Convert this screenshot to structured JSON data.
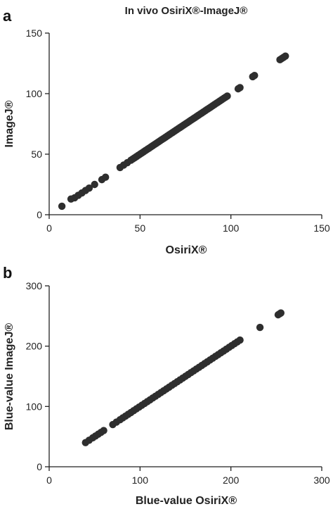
{
  "chart_data": [
    {
      "panel": "a",
      "type": "scatter",
      "title": "In vivo OsiriX®-ImageJ®",
      "xlabel": "OsiriX®",
      "ylabel": "ImageJ®",
      "xlim": [
        0,
        150
      ],
      "ylim": [
        0,
        150
      ],
      "xticks": [
        0,
        50,
        100,
        150
      ],
      "yticks": [
        0,
        50,
        100,
        150
      ],
      "grid": false,
      "color": "#2e2e2e",
      "points": [
        [
          7,
          7
        ],
        [
          12,
          13
        ],
        [
          14,
          14
        ],
        [
          16,
          16
        ],
        [
          18,
          18
        ],
        [
          20,
          20
        ],
        [
          22,
          22
        ],
        [
          25,
          25
        ],
        [
          29,
          29
        ],
        [
          31,
          31
        ],
        [
          39,
          39
        ],
        [
          41,
          41
        ],
        [
          43,
          43
        ],
        [
          45,
          45
        ],
        [
          46,
          46
        ],
        [
          47,
          47
        ],
        [
          48,
          48
        ],
        [
          49,
          49
        ],
        [
          50,
          50
        ],
        [
          51,
          51
        ],
        [
          52,
          52
        ],
        [
          53,
          53
        ],
        [
          54,
          54
        ],
        [
          55,
          55
        ],
        [
          56,
          56
        ],
        [
          57,
          57
        ],
        [
          58,
          58
        ],
        [
          59,
          59
        ],
        [
          60,
          60
        ],
        [
          61,
          61
        ],
        [
          62,
          62
        ],
        [
          63,
          63
        ],
        [
          64,
          64
        ],
        [
          65,
          65
        ],
        [
          66,
          66
        ],
        [
          67,
          67
        ],
        [
          68,
          68
        ],
        [
          69,
          69
        ],
        [
          70,
          70
        ],
        [
          71,
          71
        ],
        [
          72,
          72
        ],
        [
          73,
          73
        ],
        [
          74,
          74
        ],
        [
          75,
          75
        ],
        [
          76,
          76
        ],
        [
          77,
          77
        ],
        [
          78,
          78
        ],
        [
          79,
          79
        ],
        [
          80,
          80
        ],
        [
          81,
          81
        ],
        [
          82,
          82
        ],
        [
          83,
          83
        ],
        [
          84,
          84
        ],
        [
          85,
          85
        ],
        [
          86,
          86
        ],
        [
          87,
          87
        ],
        [
          88,
          88
        ],
        [
          89,
          89
        ],
        [
          90,
          90
        ],
        [
          91,
          91
        ],
        [
          92,
          92
        ],
        [
          93,
          93
        ],
        [
          94,
          94
        ],
        [
          95,
          95
        ],
        [
          96,
          96
        ],
        [
          97,
          97
        ],
        [
          98,
          98
        ],
        [
          104,
          104
        ],
        [
          105,
          105
        ],
        [
          112,
          114
        ],
        [
          113,
          115
        ],
        [
          127,
          128
        ],
        [
          128,
          129
        ],
        [
          129,
          130
        ],
        [
          130,
          131
        ]
      ]
    },
    {
      "panel": "b",
      "type": "scatter",
      "title": "",
      "xlabel": "Blue-value  OsiriX®",
      "ylabel": "Blue-value ImageJ®",
      "xlim": [
        0,
        300
      ],
      "ylim": [
        0,
        300
      ],
      "xticks": [
        0,
        100,
        200,
        300
      ],
      "yticks": [
        0,
        100,
        200,
        300
      ],
      "grid": false,
      "color": "#2e2e2e",
      "points": [
        [
          40,
          40
        ],
        [
          44,
          44
        ],
        [
          48,
          48
        ],
        [
          51,
          51
        ],
        [
          54,
          54
        ],
        [
          57,
          57
        ],
        [
          60,
          60
        ],
        [
          70,
          70
        ],
        [
          74,
          74
        ],
        [
          78,
          78
        ],
        [
          81,
          81
        ],
        [
          84,
          84
        ],
        [
          87,
          87
        ],
        [
          90,
          90
        ],
        [
          93,
          93
        ],
        [
          96,
          96
        ],
        [
          99,
          99
        ],
        [
          102,
          102
        ],
        [
          105,
          105
        ],
        [
          108,
          108
        ],
        [
          111,
          111
        ],
        [
          114,
          114
        ],
        [
          117,
          117
        ],
        [
          120,
          120
        ],
        [
          123,
          123
        ],
        [
          126,
          126
        ],
        [
          129,
          129
        ],
        [
          132,
          132
        ],
        [
          135,
          135
        ],
        [
          138,
          138
        ],
        [
          141,
          141
        ],
        [
          144,
          144
        ],
        [
          147,
          147
        ],
        [
          150,
          150
        ],
        [
          153,
          153
        ],
        [
          156,
          156
        ],
        [
          159,
          159
        ],
        [
          162,
          162
        ],
        [
          165,
          165
        ],
        [
          168,
          168
        ],
        [
          171,
          171
        ],
        [
          174,
          174
        ],
        [
          177,
          177
        ],
        [
          180,
          180
        ],
        [
          183,
          183
        ],
        [
          186,
          186
        ],
        [
          189,
          189
        ],
        [
          192,
          192
        ],
        [
          195,
          195
        ],
        [
          198,
          198
        ],
        [
          201,
          201
        ],
        [
          204,
          204
        ],
        [
          207,
          207
        ],
        [
          210,
          210
        ],
        [
          232,
          231
        ],
        [
          252,
          252
        ],
        [
          254,
          254
        ],
        [
          255,
          255
        ]
      ]
    }
  ]
}
